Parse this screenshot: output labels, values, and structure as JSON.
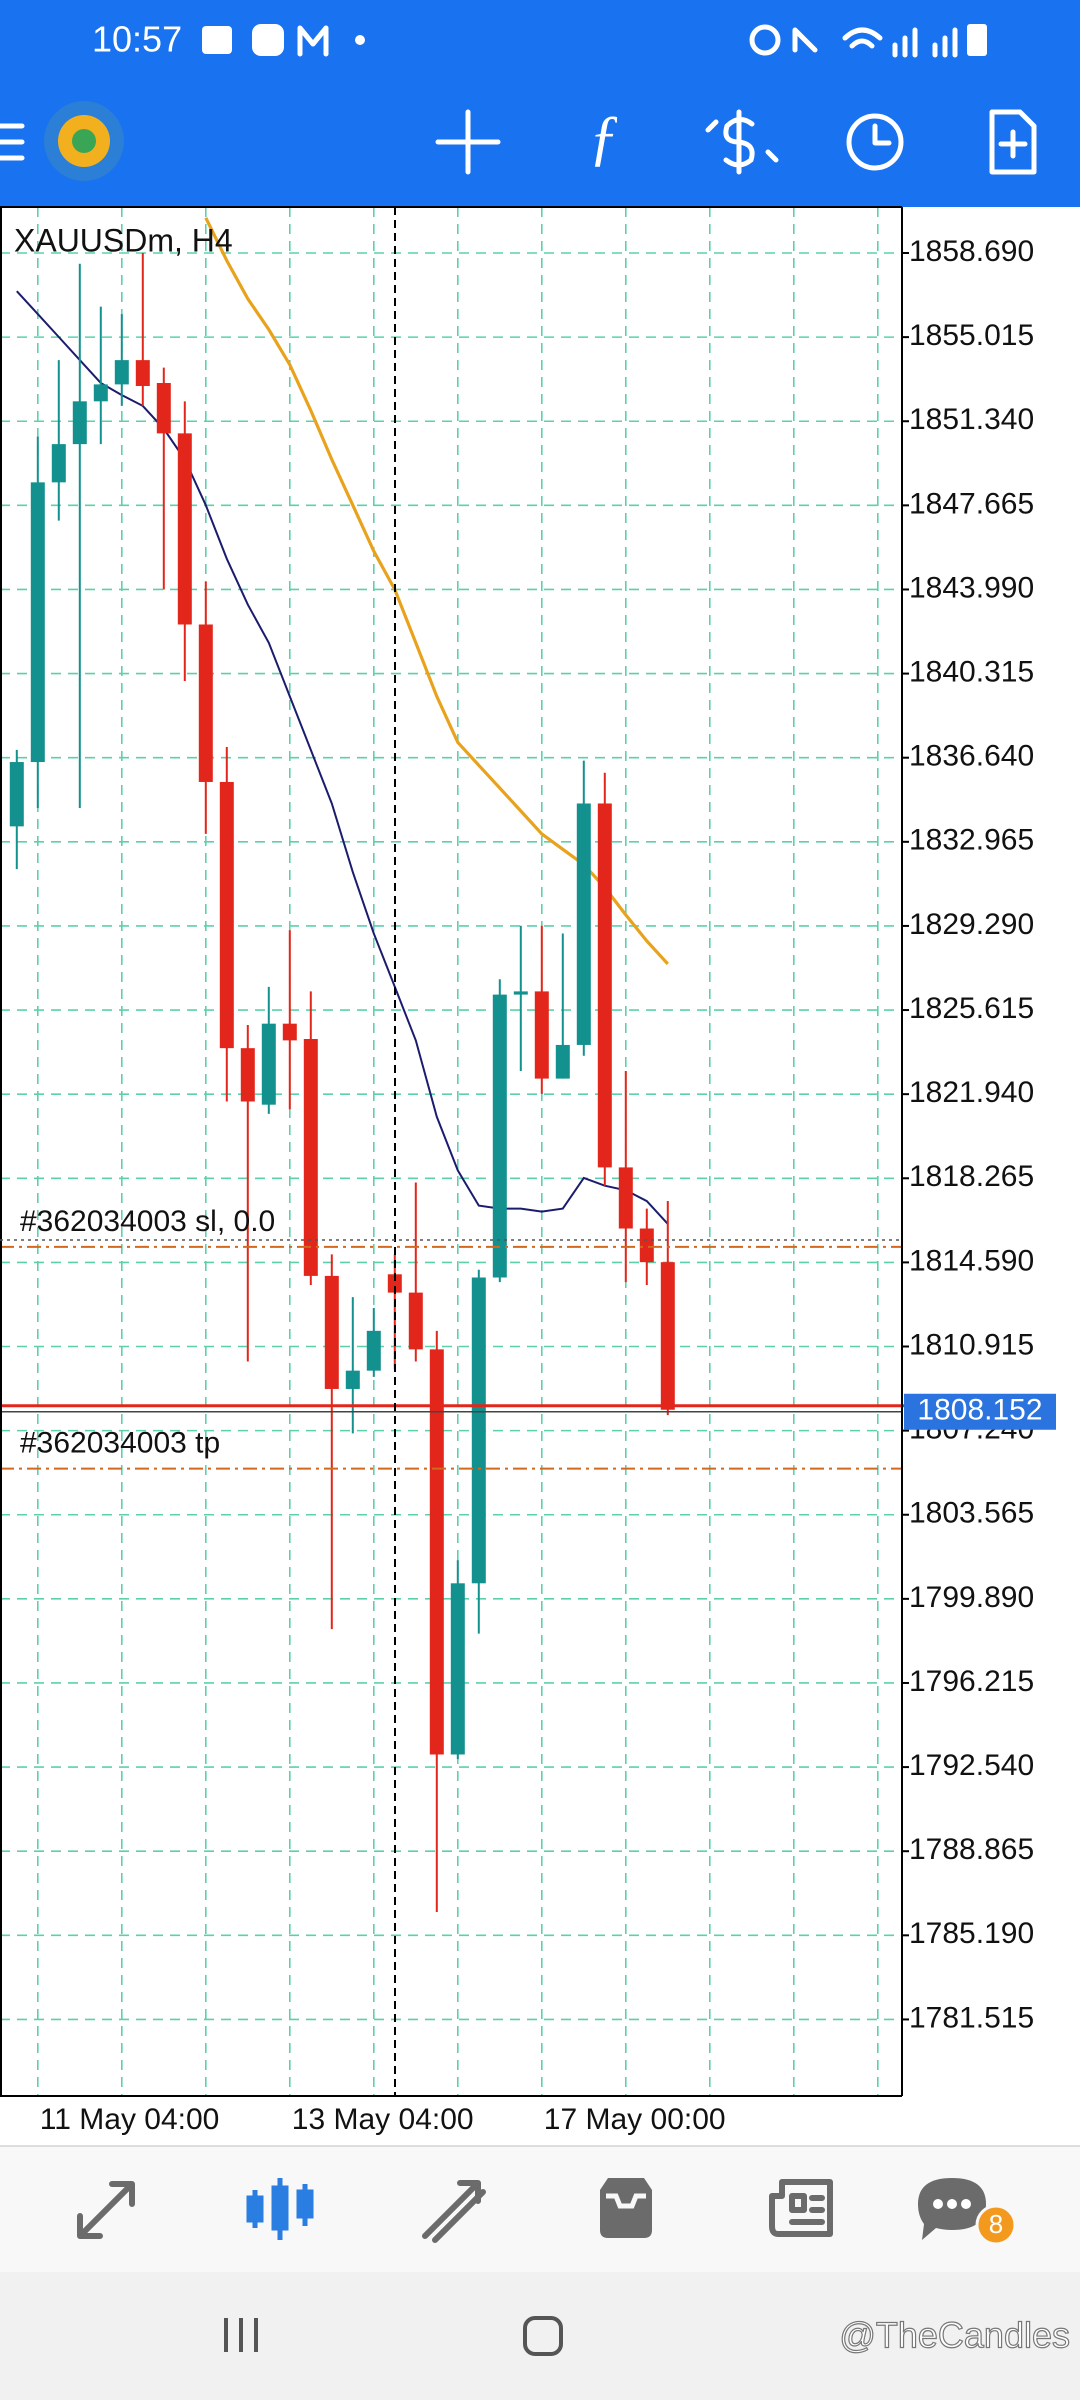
{
  "status_bar": {
    "time": "10:57"
  },
  "nav": {
    "badge": "8"
  },
  "watermark": "@TheCandles",
  "chart_data": {
    "type": "candlestick",
    "title": "XAUUSDm, H4",
    "categories": [
      null,
      "11 May 04:00",
      null,
      null,
      null,
      null,
      null,
      null,
      null,
      null,
      null,
      null,
      null,
      "13 May 04:00",
      null,
      null,
      null,
      null,
      null,
      null,
      null,
      null,
      null,
      null,
      null,
      "17 May 00:00",
      null,
      null,
      null,
      null,
      null,
      null
    ],
    "open": [
      1833.64,
      1836.45,
      1848.67,
      1850.34,
      1852.21,
      1852.95,
      1854.01,
      1853.01,
      1850.81,
      1842.46,
      1835.58,
      1823.95,
      1821.48,
      1825.02,
      1824.35,
      1814.0,
      1809.06,
      1809.86,
      1814.07,
      1813.27,
      1810.79,
      1793.09,
      1800.57,
      1813.93,
      1826.29,
      1826.43,
      1822.62,
      1824.09,
      1834.64,
      1818.74,
      1816.07,
      1814.6
    ],
    "high": [
      1836.98,
      1850.67,
      1854.01,
      1858.22,
      1856.35,
      1856.02,
      1858.69,
      1853.68,
      1852.21,
      1844.33,
      1837.11,
      1824.96,
      1826.63,
      1829.1,
      1826.43,
      1814.94,
      1813.07,
      1812.6,
      1814.94,
      1818.08,
      1811.6,
      1801.58,
      1814.27,
      1826.96,
      1829.3,
      1829.3,
      1828.96,
      1836.51,
      1835.98,
      1822.95,
      1816.94,
      1817.27
    ],
    "low": [
      1831.77,
      1834.44,
      1847.0,
      1834.44,
      1850.34,
      1852.01,
      1852.01,
      1843.99,
      1839.99,
      1833.31,
      1821.62,
      1810.26,
      1821.08,
      1821.28,
      1813.6,
      1798.57,
      1807.12,
      1809.59,
      1809.93,
      1810.26,
      1786.21,
      1792.89,
      1798.37,
      1813.73,
      1822.95,
      1821.95,
      1822.62,
      1823.62,
      1817.94,
      1813.73,
      1813.6,
      1807.92
    ],
    "close": [
      1836.45,
      1848.67,
      1850.34,
      1852.21,
      1852.95,
      1854.01,
      1852.88,
      1850.81,
      1842.46,
      1835.58,
      1823.95,
      1821.62,
      1825.02,
      1824.29,
      1814.0,
      1809.06,
      1809.86,
      1811.6,
      1813.27,
      1810.79,
      1793.09,
      1800.57,
      1813.93,
      1826.29,
      1826.43,
      1822.62,
      1824.09,
      1834.64,
      1818.74,
      1816.07,
      1814.6,
      1808.152
    ],
    "up_color": "#13918f",
    "down_color": "#e3261b",
    "overlays": [
      {
        "color": "#1c1c6e",
        "values": [
          1857.02,
          1856.02,
          1855.02,
          1854.01,
          1853.01,
          1852.48,
          1852.01,
          1851.01,
          1849.67,
          1847.67,
          1845.33,
          1843.33,
          1841.66,
          1839.32,
          1836.98,
          1834.64,
          1831.64,
          1828.96,
          1826.63,
          1824.29,
          1820.95,
          1818.61,
          1817.07,
          1816.94,
          1816.94,
          1816.81,
          1816.94,
          1818.28,
          1817.94,
          1817.74,
          1817.27,
          1816.27
        ]
      },
      {
        "color": "#e9a21c",
        "values": [
          null,
          null,
          null,
          null,
          null,
          null,
          null,
          null,
          null,
          1860.23,
          1858.36,
          1856.69,
          1855.35,
          1853.81,
          1851.81,
          1849.67,
          1847.67,
          1845.66,
          1843.99,
          1841.66,
          1839.32,
          1837.31,
          1836.31,
          1835.31,
          1834.31,
          1833.31,
          1832.64,
          1831.97,
          1830.97,
          1829.77,
          1828.63,
          1827.63
        ]
      }
    ],
    "levels": [
      {
        "label": "#362034003 sl, 0.0",
        "value": 1815.27,
        "color": "#d2691e"
      },
      {
        "label": "#362034003 tp",
        "value": 1805.58,
        "color": "#d2691e"
      }
    ],
    "bid": 1808.152,
    "bid_color": "#e3261b",
    "ylim": [
      1778.17,
      1860.7
    ],
    "yticks": [
      {
        "value": 1858.69,
        "label": "1858.690"
      },
      {
        "value": 1855.015,
        "label": "1855.015"
      },
      {
        "value": 1851.34,
        "label": "1851.340"
      },
      {
        "value": 1847.665,
        "label": "1847.665"
      },
      {
        "value": 1843.99,
        "label": "1843.990"
      },
      {
        "value": 1840.315,
        "label": "1840.315"
      },
      {
        "value": 1836.64,
        "label": "1836.640"
      },
      {
        "value": 1832.965,
        "label": "1832.965"
      },
      {
        "value": 1829.29,
        "label": "1829.290"
      },
      {
        "value": 1825.615,
        "label": "1825.615"
      },
      {
        "value": 1821.94,
        "label": "1821.940"
      },
      {
        "value": 1818.265,
        "label": "1818.265"
      },
      {
        "value": 1814.59,
        "label": "1814.590"
      },
      {
        "value": 1810.915,
        "label": "1810.915"
      },
      {
        "value": 1807.24,
        "label": "1807.240"
      },
      {
        "value": 1803.565,
        "label": "1803.565"
      },
      {
        "value": 1799.89,
        "label": "1799.890"
      },
      {
        "value": 1796.215,
        "label": "1796.215"
      },
      {
        "value": 1792.54,
        "label": "1792.540"
      },
      {
        "value": 1788.865,
        "label": "1788.865"
      },
      {
        "value": 1785.19,
        "label": "1785.190"
      },
      {
        "value": 1781.515,
        "label": "1781.515"
      }
    ],
    "grid": true
  }
}
